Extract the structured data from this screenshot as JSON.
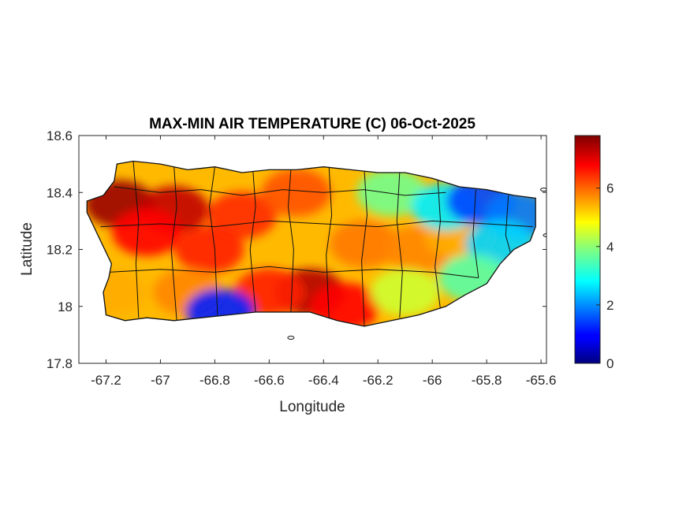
{
  "chart_data": {
    "type": "heatmap",
    "title": "MAX-MIN AIR TEMPERATURE (C) 06-Oct-2025",
    "xlabel": "Longitude",
    "ylabel": "Latitude",
    "xlim": [
      -67.3,
      -65.58
    ],
    "ylim": [
      17.8,
      18.6
    ],
    "xticks": [
      -67.2,
      -67.0,
      -66.8,
      -66.6,
      -66.4,
      -66.2,
      -66.0,
      -65.8,
      -65.6
    ],
    "xtick_labels": [
      "-67.2",
      "-67",
      "-66.8",
      "-66.6",
      "-66.4",
      "-66.2",
      "-66",
      "-65.8",
      "-65.6"
    ],
    "yticks": [
      17.8,
      18.0,
      18.2,
      18.4,
      18.6
    ],
    "ytick_labels": [
      "17.8",
      "18",
      "18.2",
      "18.4",
      "18.6"
    ],
    "colormap": "jet",
    "colorbar": {
      "range": [
        0,
        7.8
      ],
      "ticks": [
        0,
        2,
        4,
        6
      ],
      "tick_labels": [
        "0",
        "2",
        "4",
        "6"
      ]
    },
    "region_outline": [
      [
        -67.27,
        18.37
      ],
      [
        -67.21,
        18.39
      ],
      [
        -67.17,
        18.44
      ],
      [
        -67.16,
        18.5
      ],
      [
        -67.1,
        18.51
      ],
      [
        -67.0,
        18.5
      ],
      [
        -66.9,
        18.48
      ],
      [
        -66.8,
        18.49
      ],
      [
        -66.7,
        18.47
      ],
      [
        -66.6,
        18.48
      ],
      [
        -66.5,
        18.48
      ],
      [
        -66.4,
        18.49
      ],
      [
        -66.3,
        18.48
      ],
      [
        -66.2,
        18.47
      ],
      [
        -66.1,
        18.47
      ],
      [
        -66.0,
        18.45
      ],
      [
        -65.9,
        18.42
      ],
      [
        -65.8,
        18.41
      ],
      [
        -65.7,
        18.39
      ],
      [
        -65.62,
        18.38
      ],
      [
        -65.62,
        18.28
      ],
      [
        -65.64,
        18.23
      ],
      [
        -65.7,
        18.2
      ],
      [
        -65.75,
        18.15
      ],
      [
        -65.8,
        18.08
      ],
      [
        -65.88,
        18.04
      ],
      [
        -65.95,
        18.0
      ],
      [
        -66.05,
        17.97
      ],
      [
        -66.15,
        17.95
      ],
      [
        -66.25,
        17.93
      ],
      [
        -66.35,
        17.95
      ],
      [
        -66.45,
        17.98
      ],
      [
        -66.55,
        17.98
      ],
      [
        -66.65,
        17.98
      ],
      [
        -66.75,
        17.97
      ],
      [
        -66.85,
        17.96
      ],
      [
        -66.95,
        17.95
      ],
      [
        -67.05,
        17.96
      ],
      [
        -67.13,
        17.95
      ],
      [
        -67.2,
        17.97
      ],
      [
        -67.21,
        18.05
      ],
      [
        -67.19,
        18.1
      ],
      [
        -67.18,
        18.15
      ],
      [
        -67.23,
        18.25
      ],
      [
        -67.27,
        18.33
      ]
    ],
    "hotspots": [
      {
        "lon": -67.15,
        "lat": 18.36,
        "value": 7.6
      },
      {
        "lon": -66.95,
        "lat": 18.34,
        "value": 7.3
      },
      {
        "lon": -67.05,
        "lat": 18.26,
        "value": 6.8
      },
      {
        "lon": -66.82,
        "lat": 18.2,
        "value": 6.6
      },
      {
        "lon": -66.7,
        "lat": 18.32,
        "value": 6.5
      },
      {
        "lon": -66.5,
        "lat": 18.4,
        "value": 6.2
      },
      {
        "lon": -66.45,
        "lat": 18.05,
        "value": 7.4
      },
      {
        "lon": -66.32,
        "lat": 18.0,
        "value": 6.8
      },
      {
        "lon": -66.6,
        "lat": 18.05,
        "value": 6.6
      },
      {
        "lon": -66.9,
        "lat": 18.05,
        "value": 5.8
      },
      {
        "lon": -66.25,
        "lat": 18.22,
        "value": 5.9
      },
      {
        "lon": -66.05,
        "lat": 18.2,
        "value": 5.8
      },
      {
        "lon": -65.9,
        "lat": 18.25,
        "value": 5.5
      },
      {
        "lon": -66.15,
        "lat": 18.4,
        "value": 3.8
      },
      {
        "lon": -65.95,
        "lat": 18.35,
        "value": 2.8
      },
      {
        "lon": -65.82,
        "lat": 18.37,
        "value": 1.5
      },
      {
        "lon": -65.68,
        "lat": 18.32,
        "value": 1.9
      },
      {
        "lon": -65.75,
        "lat": 18.22,
        "value": 2.6
      },
      {
        "lon": -65.85,
        "lat": 18.1,
        "value": 3.6
      },
      {
        "lon": -66.1,
        "lat": 18.05,
        "value": 4.5
      },
      {
        "lon": -66.78,
        "lat": 17.98,
        "value": 1.2
      },
      {
        "lon": -67.18,
        "lat": 18.05,
        "value": 5.5
      }
    ],
    "border_lines": [
      [
        [
          -67.1,
          18.51
        ],
        [
          -67.09,
          18.4
        ],
        [
          -67.08,
          18.3
        ],
        [
          -67.09,
          18.15
        ],
        [
          -67.08,
          17.96
        ]
      ],
      [
        [
          -66.95,
          18.49
        ],
        [
          -66.94,
          18.35
        ],
        [
          -66.96,
          18.2
        ],
        [
          -66.94,
          17.95
        ]
      ],
      [
        [
          -66.8,
          18.49
        ],
        [
          -66.82,
          18.35
        ],
        [
          -66.8,
          18.2
        ],
        [
          -66.79,
          17.97
        ]
      ],
      [
        [
          -66.66,
          18.48
        ],
        [
          -66.65,
          18.35
        ],
        [
          -66.67,
          18.2
        ],
        [
          -66.65,
          17.98
        ]
      ],
      [
        [
          -66.52,
          18.48
        ],
        [
          -66.53,
          18.35
        ],
        [
          -66.51,
          18.2
        ],
        [
          -66.52,
          17.98
        ]
      ],
      [
        [
          -66.38,
          18.49
        ],
        [
          -66.37,
          18.32
        ],
        [
          -66.39,
          18.18
        ],
        [
          -66.38,
          17.96
        ]
      ],
      [
        [
          -66.25,
          18.48
        ],
        [
          -66.24,
          18.32
        ],
        [
          -66.26,
          18.16
        ],
        [
          -66.25,
          17.93
        ]
      ],
      [
        [
          -66.12,
          18.47
        ],
        [
          -66.13,
          18.3
        ],
        [
          -66.11,
          18.12
        ],
        [
          -66.12,
          17.96
        ]
      ],
      [
        [
          -65.98,
          18.45
        ],
        [
          -65.97,
          18.3
        ],
        [
          -65.99,
          18.14
        ],
        [
          -65.97,
          17.99
        ]
      ],
      [
        [
          -65.84,
          18.41
        ],
        [
          -65.85,
          18.25
        ],
        [
          -65.83,
          18.1
        ]
      ],
      [
        [
          -65.72,
          18.39
        ],
        [
          -65.73,
          18.25
        ],
        [
          -65.71,
          18.18
        ]
      ],
      [
        [
          -67.22,
          18.28
        ],
        [
          -67.0,
          18.29
        ],
        [
          -66.8,
          18.28
        ],
        [
          -66.6,
          18.3
        ],
        [
          -66.4,
          18.29
        ],
        [
          -66.2,
          18.28
        ],
        [
          -66.0,
          18.3
        ],
        [
          -65.8,
          18.29
        ],
        [
          -65.63,
          18.28
        ]
      ],
      [
        [
          -67.19,
          18.12
        ],
        [
          -67.0,
          18.13
        ],
        [
          -66.8,
          18.12
        ],
        [
          -66.6,
          18.14
        ],
        [
          -66.4,
          18.12
        ],
        [
          -66.2,
          18.13
        ],
        [
          -66.0,
          18.12
        ],
        [
          -65.83,
          18.1
        ]
      ],
      [
        [
          -67.17,
          18.42
        ],
        [
          -67.0,
          18.4
        ],
        [
          -66.85,
          18.41
        ],
        [
          -66.7,
          18.39
        ],
        [
          -66.55,
          18.41
        ],
        [
          -66.4,
          18.4
        ],
        [
          -66.25,
          18.41
        ],
        [
          -66.1,
          18.39
        ],
        [
          -65.95,
          18.4
        ]
      ]
    ],
    "islets": [
      {
        "lon": -66.52,
        "lat": 17.89
      },
      {
        "lon": -65.58,
        "lat": 18.25
      },
      {
        "lon": -65.59,
        "lat": 18.41
      }
    ]
  }
}
